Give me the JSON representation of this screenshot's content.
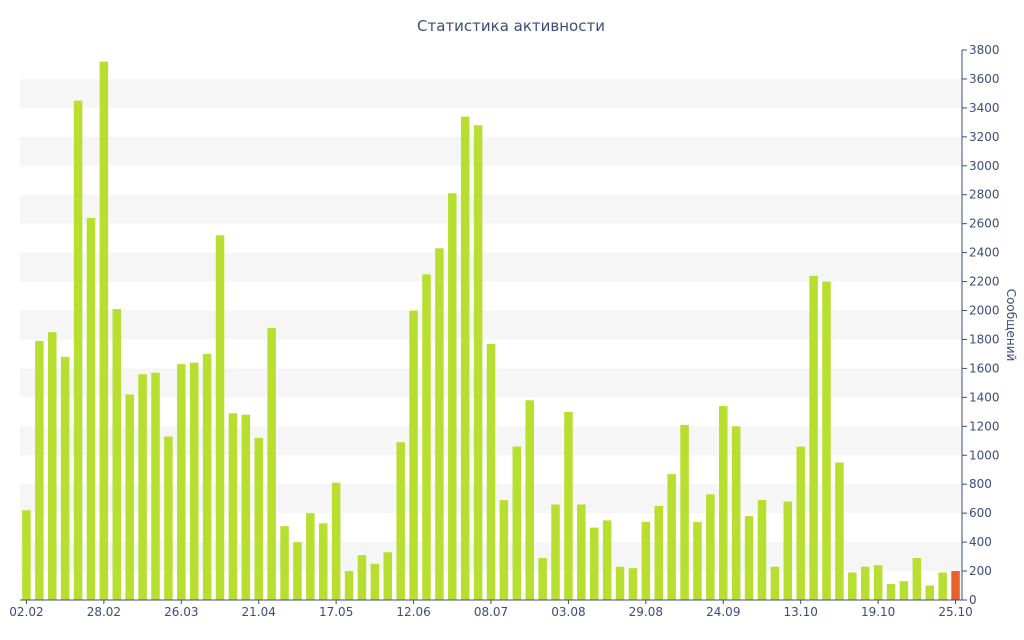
{
  "chart_data": {
    "type": "bar",
    "title": "Статистика активности",
    "ylabel": "Сообщений",
    "xlabel": "",
    "ylim": [
      0,
      3800
    ],
    "y_ticks": [
      0,
      200,
      400,
      600,
      800,
      1000,
      1200,
      1400,
      1600,
      1800,
      2000,
      2200,
      2400,
      2600,
      2800,
      3000,
      3200,
      3400,
      3600,
      3800
    ],
    "x_tick_labels": [
      {
        "label": "02.02",
        "index": 0
      },
      {
        "label": "28.02",
        "index": 6
      },
      {
        "label": "26.03",
        "index": 12
      },
      {
        "label": "21.04",
        "index": 18
      },
      {
        "label": "17.05",
        "index": 24
      },
      {
        "label": "12.06",
        "index": 30
      },
      {
        "label": "08.07",
        "index": 36
      },
      {
        "label": "03.08",
        "index": 42
      },
      {
        "label": "29.08",
        "index": 48
      },
      {
        "label": "24.09",
        "index": 54
      },
      {
        "label": "13.10",
        "index": 60
      },
      {
        "label": "19.10",
        "index": 66
      },
      {
        "label": "25.10",
        "index": 72
      }
    ],
    "y_axis_position": "right",
    "grid": true,
    "colors": {
      "bar": "#b8de2f",
      "highlight": "#e8602a",
      "axis": "#3d4d7a",
      "band": "#f6f6f6"
    },
    "highlight_index": 72,
    "values": [
      620,
      1790,
      1850,
      1680,
      3450,
      2640,
      3720,
      2010,
      1420,
      1560,
      1570,
      1130,
      1630,
      1640,
      1700,
      2520,
      1290,
      1280,
      1120,
      1880,
      510,
      400,
      600,
      530,
      810,
      200,
      310,
      250,
      330,
      1090,
      2000,
      2250,
      2430,
      2810,
      3340,
      3280,
      1770,
      690,
      1060,
      1380,
      290,
      660,
      1300,
      660,
      500,
      550,
      230,
      220,
      540,
      650,
      870,
      1210,
      540,
      730,
      1340,
      1200,
      580,
      690,
      230,
      680,
      1060,
      2240,
      2200,
      950,
      190,
      230,
      240,
      110,
      130,
      290,
      100,
      190,
      200
    ]
  }
}
